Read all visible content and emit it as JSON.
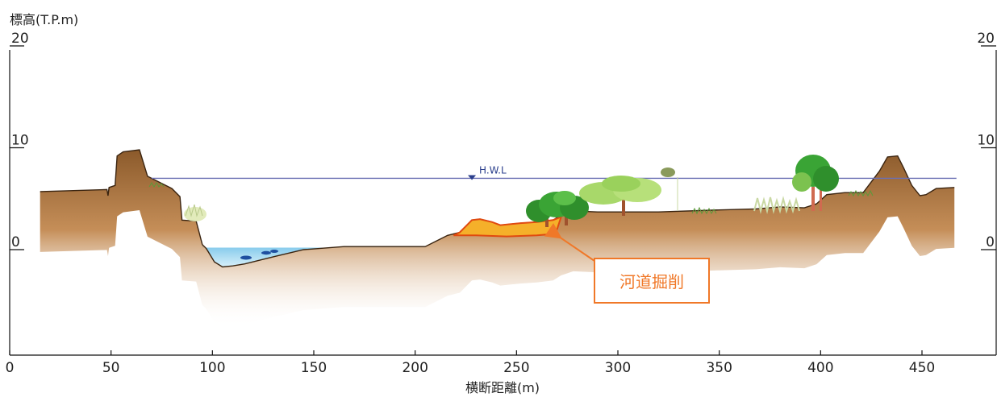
{
  "y_axis_title": "標高(T.P.m)",
  "x_axis_title": "横断距離(m)",
  "y_ticks_left": [
    {
      "value": 20,
      "label": "20"
    },
    {
      "value": 10,
      "label": "10"
    },
    {
      "value": 0,
      "label": "0"
    }
  ],
  "y_ticks_right": [
    {
      "value": 20,
      "label": "20"
    },
    {
      "value": 10,
      "label": "10"
    },
    {
      "value": 0,
      "label": "0"
    }
  ],
  "x_ticks": [
    {
      "value": 0,
      "label": "0"
    },
    {
      "value": 50,
      "label": "50"
    },
    {
      "value": 100,
      "label": "100"
    },
    {
      "value": 150,
      "label": "150"
    },
    {
      "value": 200,
      "label": "200"
    },
    {
      "value": 250,
      "label": "250"
    },
    {
      "value": 300,
      "label": "300"
    },
    {
      "value": 350,
      "label": "350"
    },
    {
      "value": 400,
      "label": "400"
    },
    {
      "value": 450,
      "label": "450"
    }
  ],
  "hwl": {
    "label": "H.W.L",
    "elevation": 7.0,
    "x_start": 70,
    "x_end": 467
  },
  "ground_profile": [
    [
      15,
      5.7
    ],
    [
      48,
      5.9
    ],
    [
      48.5,
      5.3
    ],
    [
      49,
      6.1
    ],
    [
      52,
      6.3
    ],
    [
      53,
      9.2
    ],
    [
      56,
      9.6
    ],
    [
      64,
      9.8
    ],
    [
      68,
      7.2
    ],
    [
      72,
      6.8
    ],
    [
      80,
      6.0
    ],
    [
      84,
      5.2
    ],
    [
      85,
      2.9
    ],
    [
      92,
      2.8
    ],
    [
      95,
      0.5
    ],
    [
      97,
      0.1
    ],
    [
      101,
      -1.2
    ],
    [
      105,
      -1.7
    ],
    [
      110,
      -1.6
    ],
    [
      116,
      -1.4
    ],
    [
      130,
      -0.7
    ],
    [
      145,
      0.0
    ],
    [
      165,
      0.3
    ],
    [
      205,
      0.3
    ],
    [
      210,
      0.8
    ],
    [
      216,
      1.4
    ],
    [
      222,
      1.7
    ],
    [
      226,
      2.5
    ],
    [
      228,
      2.9
    ],
    [
      232,
      3.0
    ],
    [
      238,
      2.7
    ],
    [
      242,
      2.4
    ],
    [
      252,
      2.6
    ],
    [
      260,
      2.7
    ],
    [
      268,
      2.9
    ],
    [
      272,
      3.4
    ],
    [
      278,
      3.8
    ],
    [
      290,
      3.7
    ],
    [
      320,
      3.7
    ],
    [
      350,
      3.9
    ],
    [
      368,
      4.0
    ],
    [
      380,
      4.2
    ],
    [
      392,
      4.1
    ],
    [
      398,
      4.5
    ],
    [
      403,
      5.4
    ],
    [
      412,
      5.6
    ],
    [
      421,
      5.6
    ],
    [
      429,
      7.7
    ],
    [
      433,
      9.1
    ],
    [
      438,
      9.2
    ],
    [
      441,
      8.0
    ],
    [
      445,
      6.3
    ],
    [
      449,
      5.3
    ],
    [
      452,
      5.4
    ],
    [
      457,
      6.0
    ],
    [
      466,
      6.1
    ]
  ],
  "excavation_profile": [
    [
      219,
      1.4
    ],
    [
      230,
      1.4
    ],
    [
      245,
      1.3
    ],
    [
      260,
      1.4
    ],
    [
      266,
      1.5
    ],
    [
      270,
      2.0
    ],
    [
      272,
      3.2
    ],
    [
      268,
      2.9
    ],
    [
      260,
      2.7
    ],
    [
      252,
      2.6
    ],
    [
      242,
      2.4
    ],
    [
      238,
      2.7
    ],
    [
      232,
      3.0
    ],
    [
      228,
      2.9
    ],
    [
      226,
      2.5
    ],
    [
      222,
      1.7
    ]
  ],
  "water_surface": {
    "elevation": 0.2,
    "x_start": 95,
    "x_end": 205
  },
  "annotation": {
    "label": "河道掘削",
    "target_x": 268,
    "target_y": 1.4
  },
  "colors": {
    "soil_top": "#8b5a2b",
    "soil_fade": "#f6e3cf",
    "ground_line": "#3a2410",
    "excavation": "#f5a623",
    "excavation_edge": "#e04a10",
    "annotation": "#f07828",
    "water": "#8fd0ec",
    "hwl_line": "#5b5ea6",
    "tree_dark": "#2f8f2c",
    "tree_light": "#9ad15c",
    "trunk": "#a0522d"
  }
}
